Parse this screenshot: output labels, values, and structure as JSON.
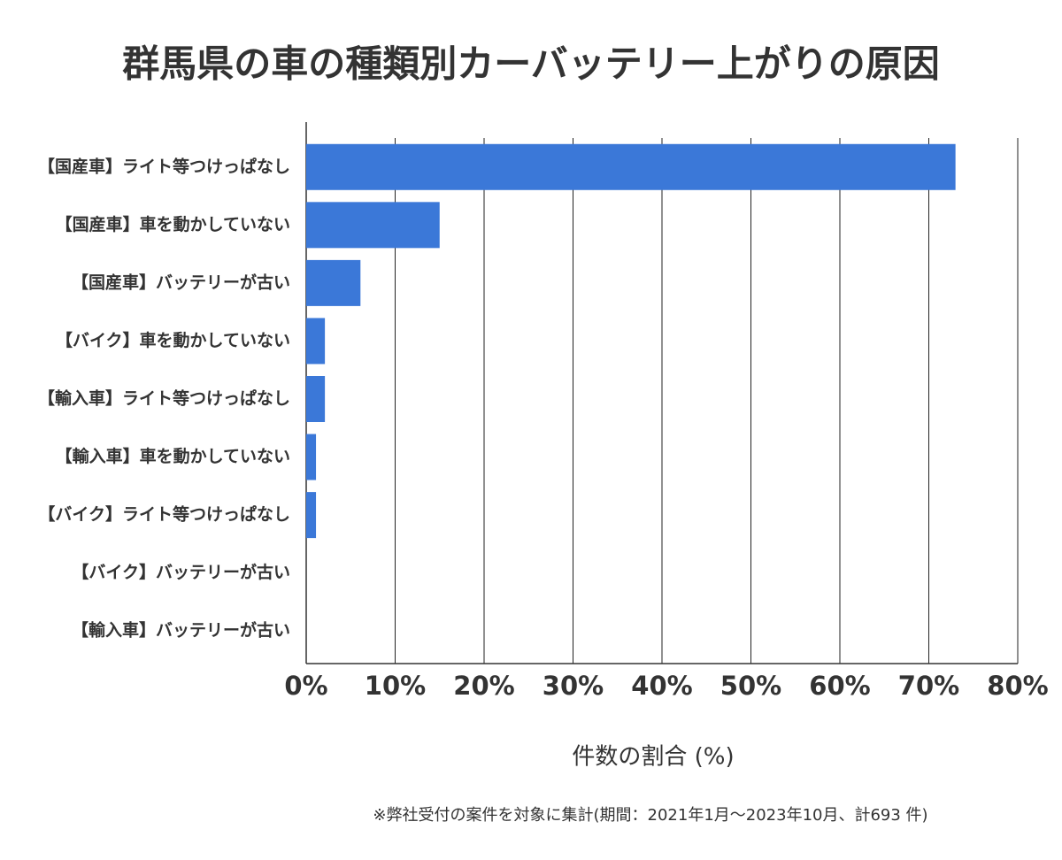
{
  "chart_data": {
    "type": "bar",
    "orientation": "horizontal",
    "title": "群馬県の車の種類別カーバッテリー上がりの原因",
    "categories": [
      "【国産車】ライト等つけっぱなし",
      "【国産車】車を動かしていない",
      "【国産車】バッテリーが古い",
      "【バイク】車を動かしていない",
      "【輸入車】ライト等つけっぱなし",
      "【輸入車】車を動かしていない",
      "【バイク】ライト等つけっぱなし",
      "【バイク】バッテリーが古い",
      "【輸入車】バッテリーが古い"
    ],
    "values": [
      73.0,
      15.0,
      6.1,
      2.1,
      2.1,
      1.1,
      1.1,
      0,
      0
    ],
    "color": "#3b78d8",
    "xlim": [
      0,
      80
    ],
    "xticks": [
      {
        "value": 0,
        "label": "0%"
      },
      {
        "value": 10,
        "label": "10%"
      },
      {
        "value": 20,
        "label": "20%"
      },
      {
        "value": 30,
        "label": "30%"
      },
      {
        "value": 40,
        "label": "40%"
      },
      {
        "value": 50,
        "label": "50%"
      },
      {
        "value": 60,
        "label": "60%"
      },
      {
        "value": 70,
        "label": "70%"
      },
      {
        "value": 80,
        "label": "80%"
      }
    ],
    "grid": true,
    "xlabel": "件数の割合 (%)",
    "note": "※弊社受付の案件を対象に集計(期間：2021年1月～2023年10月、計693 件)"
  }
}
